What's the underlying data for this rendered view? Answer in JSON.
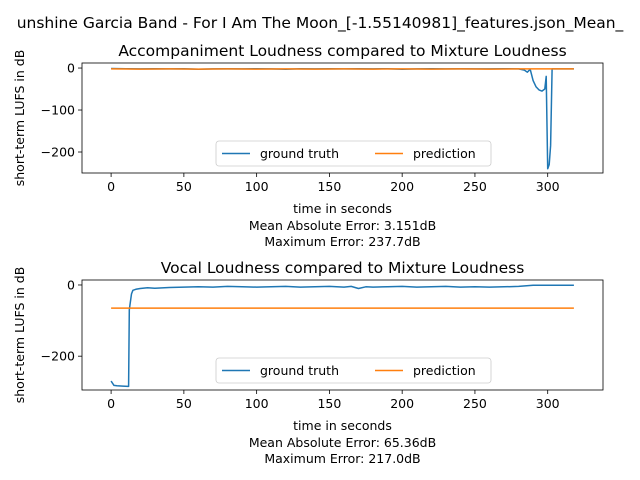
{
  "figure": {
    "suptitle": "unshine Garcia Band - For I Am The Moon_[-1.55140981]_features.json_Mean_"
  },
  "chart_data": [
    {
      "type": "line",
      "title": "Accompaniment Loudness compared to Mixture Loudness",
      "xlabel": "time in seconds",
      "ylabel": "short-term LUFS in dB",
      "xlim": [
        -20,
        338
      ],
      "ylim": [
        -250,
        12
      ],
      "xticks": [
        0,
        50,
        100,
        150,
        200,
        250,
        300
      ],
      "yticks": [
        0,
        -100,
        -200
      ],
      "legend": {
        "placement": "bottom-center",
        "columns": 2
      },
      "stats": [
        "Mean Absolute Error: 3.151dB",
        "Maximum Error: 237.7dB"
      ],
      "series": [
        {
          "name": "ground truth",
          "color": "#1f77b4",
          "x": [
            0,
            10,
            20,
            30,
            40,
            50,
            60,
            70,
            80,
            90,
            100,
            110,
            120,
            130,
            140,
            150,
            160,
            170,
            180,
            190,
            200,
            210,
            220,
            230,
            240,
            250,
            260,
            270,
            280,
            284,
            286,
            288,
            290,
            292,
            294,
            296,
            298,
            299,
            300,
            301,
            302,
            303,
            304,
            310,
            318
          ],
          "values": [
            -1,
            -1.5,
            -2,
            -1.5,
            -2,
            -1.5,
            -3,
            -2,
            -1.5,
            -2,
            -1.5,
            -2,
            -3,
            -1.5,
            -2,
            -1.5,
            -2,
            -1.5,
            -2,
            -1.5,
            -3,
            -2,
            -1.5,
            -2,
            -1.5,
            -2,
            -2,
            -1.5,
            -2,
            -5,
            -10,
            -3,
            -30,
            -45,
            -52,
            -55,
            -50,
            -20,
            -240,
            -230,
            -185,
            -2,
            -2,
            -2,
            -2
          ]
        },
        {
          "name": "prediction",
          "color": "#ff7f0e",
          "x": [
            0,
            20,
            40,
            60,
            80,
            100,
            120,
            140,
            160,
            180,
            200,
            220,
            240,
            260,
            280,
            300,
            318
          ],
          "values": [
            -2,
            -2.5,
            -2,
            -2.5,
            -2,
            -2.5,
            -2,
            -2.5,
            -2,
            -2.5,
            -2,
            -2.5,
            -2,
            -2.5,
            -2,
            -2,
            -2
          ]
        }
      ]
    },
    {
      "type": "line",
      "title": "Vocal Loudness compared to Mixture Loudness",
      "xlabel": "time in seconds",
      "ylabel": "short-term LUFS in dB",
      "xlim": [
        -20,
        338
      ],
      "ylim": [
        -295,
        14
      ],
      "xticks": [
        0,
        50,
        100,
        150,
        200,
        250,
        300
      ],
      "yticks": [
        0,
        -200
      ],
      "legend": {
        "placement": "bottom-center",
        "columns": 2
      },
      "stats": [
        "Mean Absolute Error: 65.36dB",
        "Maximum Error: 217.0dB"
      ],
      "series": [
        {
          "name": "ground truth",
          "color": "#1f77b4",
          "x": [
            0,
            2,
            4,
            8,
            12,
            12.5,
            13,
            14,
            15,
            17,
            20,
            25,
            30,
            40,
            50,
            60,
            70,
            80,
            90,
            100,
            110,
            120,
            130,
            140,
            150,
            160,
            165,
            170,
            175,
            180,
            190,
            200,
            210,
            220,
            230,
            240,
            250,
            260,
            270,
            280,
            290,
            300,
            310,
            318
          ],
          "values": [
            -270,
            -282,
            -283,
            -284,
            -285,
            -70,
            -55,
            -25,
            -15,
            -12,
            -10,
            -8,
            -9,
            -7,
            -6,
            -5,
            -6,
            -4,
            -5,
            -6,
            -5,
            -4,
            -6,
            -5,
            -4,
            -6,
            -4,
            -10,
            -5,
            -6,
            -5,
            -4,
            -6,
            -5,
            -4,
            -6,
            -5,
            -6,
            -5,
            -4,
            -1,
            -1,
            -1,
            -1
          ]
        },
        {
          "name": "prediction",
          "color": "#ff7f0e",
          "x": [
            0,
            318
          ],
          "values": [
            -65,
            -65
          ]
        }
      ]
    }
  ]
}
